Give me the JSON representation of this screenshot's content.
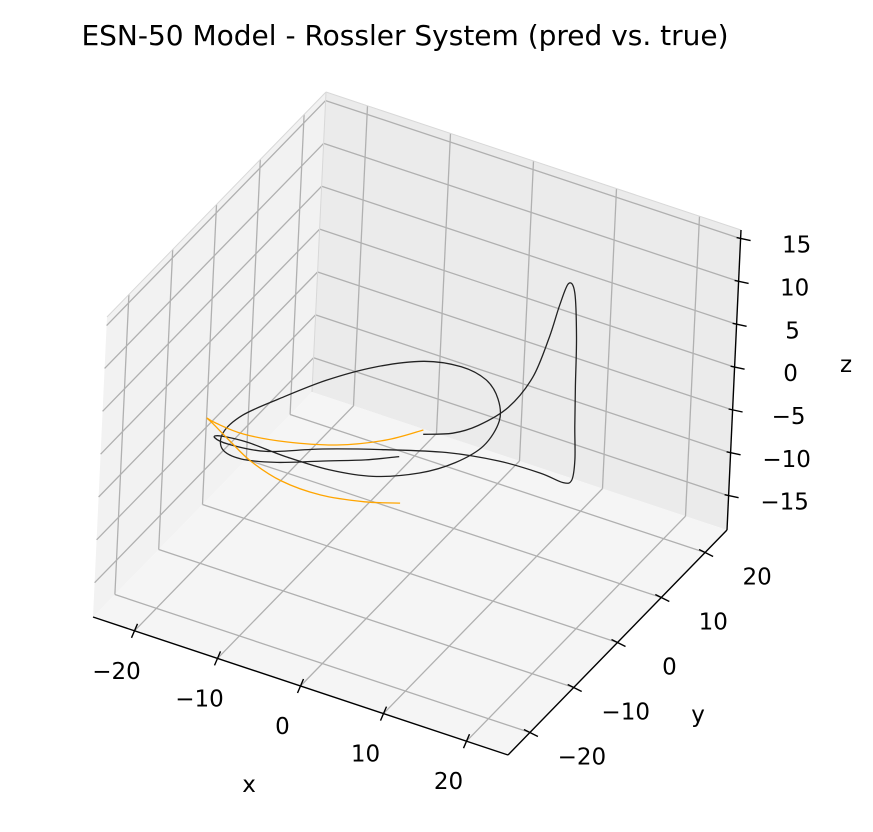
{
  "chart_data": {
    "type": "line3d",
    "title": "ESN-50 Model - Rossler System (pred vs. true)",
    "xlabel": "x",
    "ylabel": "y",
    "zlabel": "z",
    "xlim": [
      -25,
      25
    ],
    "ylim": [
      -25,
      25
    ],
    "zlim": [
      -19,
      16
    ],
    "xticks": [
      "−20",
      "−10",
      "0",
      "10",
      "20"
    ],
    "xtick_values": [
      -20,
      -10,
      0,
      10,
      20
    ],
    "yticks": [
      "−20",
      "−10",
      "0",
      "10",
      "20"
    ],
    "ytick_values": [
      -20,
      -10,
      0,
      10,
      20
    ],
    "zticks": [
      "15",
      "10",
      "5",
      "0",
      "−5",
      "−10",
      "−15"
    ],
    "ztick_values": [
      15,
      10,
      5,
      0,
      -5,
      -10,
      -15
    ],
    "grid": true,
    "series": [
      {
        "label": "true",
        "color": "#222222",
        "points": [
          [
            5.5,
            -9.5,
            4.0
          ],
          [
            7.5,
            -6.5,
            3.2
          ],
          [
            9.0,
            -3.5,
            3.0
          ],
          [
            10.5,
            0.5,
            3.5
          ],
          [
            11.5,
            4.0,
            5.5
          ],
          [
            12.0,
            6.5,
            9.0
          ],
          [
            12.3,
            8.0,
            12.0
          ],
          [
            12.6,
            9.3,
            14.0
          ],
          [
            12.9,
            10.3,
            12.5
          ],
          [
            13.0,
            11.0,
            7.0
          ],
          [
            12.9,
            11.5,
            1.0
          ],
          [
            12.8,
            12.0,
            -4.0
          ],
          [
            12.5,
            13.0,
            -8.5
          ],
          [
            11.5,
            14.5,
            -12.0
          ],
          [
            9.5,
            16.5,
            -14.0
          ],
          [
            6.0,
            18.0,
            -14.8
          ],
          [
            1.0,
            18.0,
            -15.0
          ],
          [
            -4.5,
            16.5,
            -15.0
          ],
          [
            -10.0,
            13.0,
            -14.6
          ],
          [
            -15.0,
            8.0,
            -13.5
          ],
          [
            -18.5,
            1.5,
            -11.5
          ],
          [
            -20.0,
            -4.5,
            -8.0
          ],
          [
            -19.0,
            -10.0,
            -4.0
          ],
          [
            -16.0,
            -14.5,
            -0.5
          ],
          [
            -11.5,
            -17.0,
            1.5
          ],
          [
            -6.5,
            -18.0,
            2.0
          ],
          [
            -1.5,
            -17.5,
            1.8
          ],
          [
            3.0,
            -16.0,
            1.7
          ],
          [
            7.0,
            -13.0,
            1.8
          ],
          [
            9.5,
            -9.5,
            2.0
          ],
          [
            10.5,
            -5.0,
            1.9
          ],
          [
            9.5,
            0.5,
            1.6
          ],
          [
            7.0,
            5.0,
            1.0
          ],
          [
            3.5,
            9.0,
            0.0
          ],
          [
            -1.0,
            12.0,
            -1.5
          ],
          [
            -6.0,
            13.0,
            -3.0
          ],
          [
            -11.0,
            11.5,
            -4.5
          ],
          [
            -15.0,
            8.0,
            -5.5
          ],
          [
            -18.0,
            3.0,
            -6.0
          ],
          [
            -19.5,
            -2.5,
            -5.5
          ],
          [
            -19.0,
            -8.0,
            -4.5
          ],
          [
            -16.5,
            -13.0,
            -3.0
          ],
          [
            -12.5,
            -16.5,
            -1.0
          ],
          [
            -7.5,
            -18.0,
            1.0
          ],
          [
            -2.5,
            -17.5,
            2.5
          ],
          [
            2.0,
            -16.0,
            3.3
          ],
          [
            5.0,
            -14.0,
            3.6
          ]
        ]
      },
      {
        "label": "pred",
        "color": "#FFA500",
        "points": [
          [
            5.5,
            -9.5,
            4.5
          ],
          [
            3.0,
            -13.5,
            4.6
          ],
          [
            -1.0,
            -17.0,
            4.6
          ],
          [
            -6.0,
            -19.0,
            4.4
          ],
          [
            -11.0,
            -19.2,
            3.8
          ],
          [
            -15.5,
            -17.0,
            2.5
          ],
          [
            -18.5,
            -13.0,
            0.0
          ],
          [
            -20.0,
            -8.5,
            -3.5
          ],
          [
            -20.0,
            -4.5,
            -7.5
          ],
          [
            -19.0,
            -1.0,
            -11.5
          ],
          [
            -17.0,
            2.5,
            -15.0
          ],
          [
            -14.0,
            6.0,
            -17.5
          ],
          [
            -10.5,
            9.5,
            -19.0
          ],
          [
            -7.5,
            12.0,
            -19.5
          ]
        ]
      }
    ]
  }
}
